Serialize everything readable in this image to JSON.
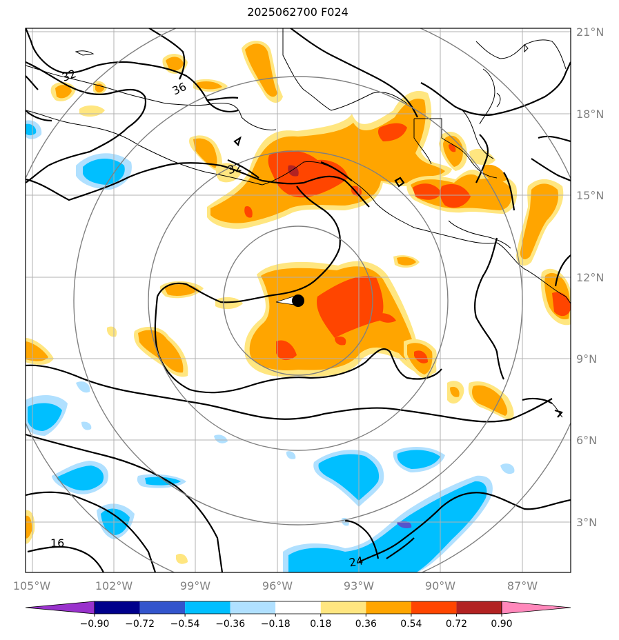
{
  "title": "2025062700 F024",
  "lat_ticks": [
    "21°N",
    "18°N",
    "15°N",
    "12°N",
    "9°N",
    "6°N",
    "3°N"
  ],
  "lon_ticks": [
    "105°W",
    "102°W",
    "99°W",
    "96°W",
    "93°W",
    "90°W",
    "87°W"
  ],
  "colorbar": {
    "labels": [
      "−0.90",
      "−0.72",
      "−0.54",
      "−0.36",
      "−0.18",
      "0.18",
      "0.36",
      "0.54",
      "0.72",
      "0.90"
    ],
    "colors": [
      "#9932cc",
      "#00008b",
      "#3355cc",
      "#00bfff",
      "#b0e0ff",
      "#ffffff",
      "#ffe680",
      "#ffa500",
      "#ff4500",
      "#b22222",
      "#ff88bb"
    ]
  },
  "contour_labels": [
    "32",
    "36",
    "32",
    "16",
    "24"
  ],
  "colors": {
    "positive_light": "#ffe680",
    "positive_mid": "#ffa500",
    "positive_strong": "#ff4500",
    "negative_light": "#b0e0ff",
    "negative_mid": "#00bfff",
    "negative_strong": "#5555cc",
    "grid": "#b0b0b0",
    "range_rings": "#808080"
  }
}
